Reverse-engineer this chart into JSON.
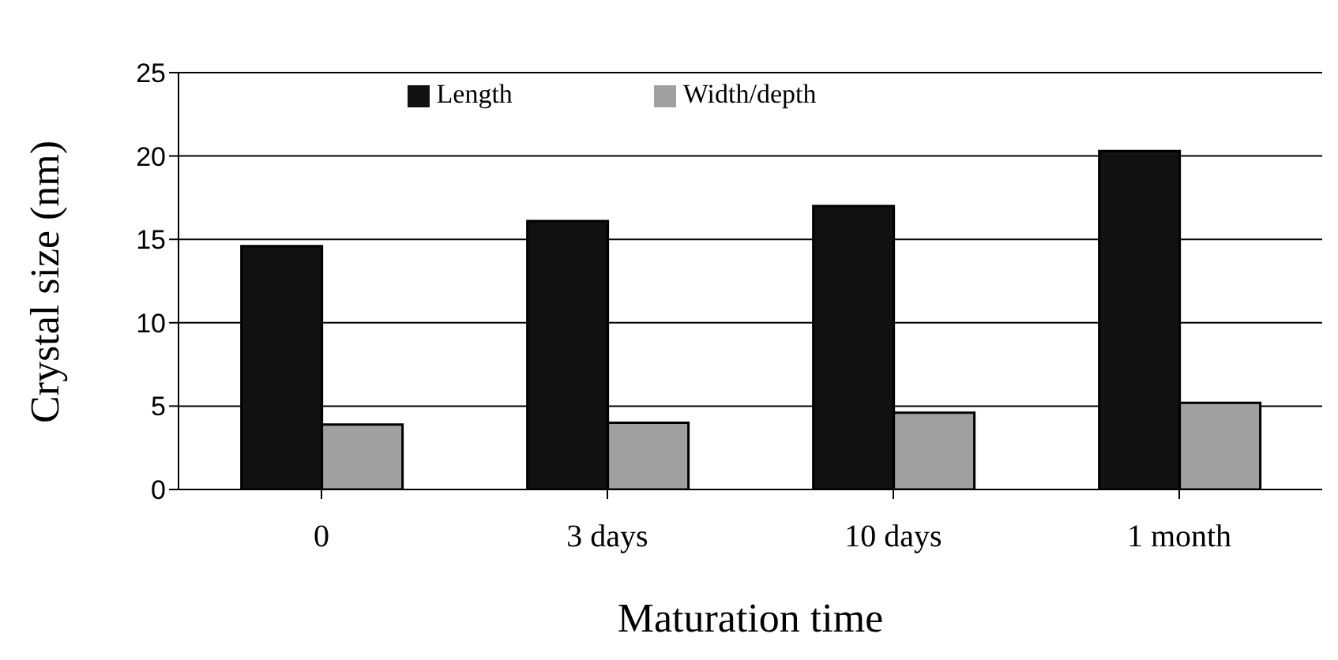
{
  "chart_data": {
    "type": "bar",
    "xlabel": "Maturation time",
    "ylabel": "Crystal size (nm)",
    "categories": [
      "0",
      "3 days",
      "10 days",
      "1 month"
    ],
    "series": [
      {
        "name": "Length",
        "color": "#111111",
        "values": [
          14.6,
          16.1,
          17.0,
          20.3
        ]
      },
      {
        "name": "Width/depth",
        "color": "#a0a0a0",
        "values": [
          3.9,
          4.0,
          4.6,
          5.2
        ]
      }
    ],
    "ylim": [
      0,
      25
    ],
    "yticks": [
      0,
      5,
      10,
      15,
      20,
      25
    ],
    "grid": "y",
    "legend": "top"
  }
}
